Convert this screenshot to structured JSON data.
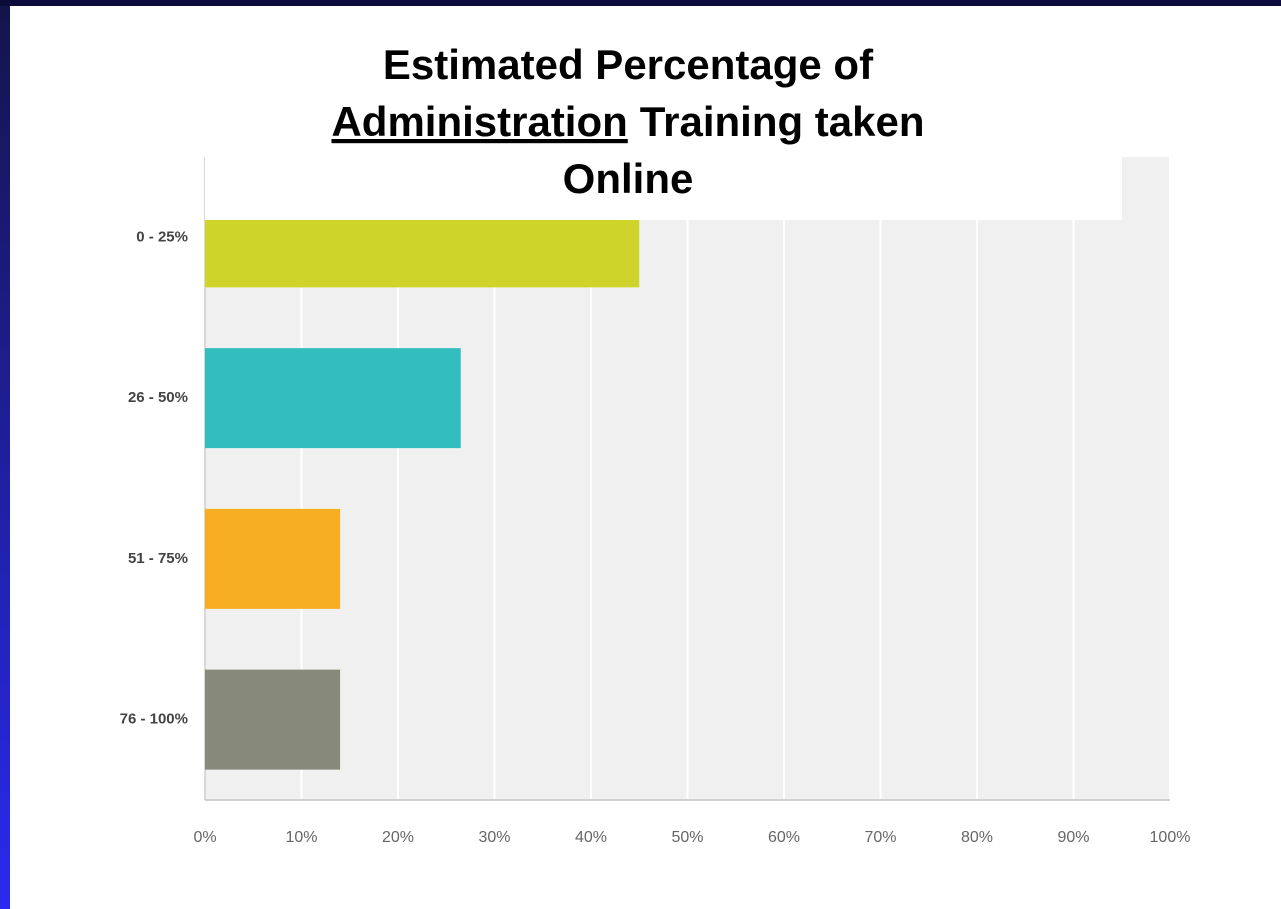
{
  "chart_data": {
    "type": "barh",
    "title": [
      "Estimated Percentage of",
      "Administration",
      "Training taken",
      "Online"
    ],
    "categories": [
      "0 - 25%",
      "26 - 50%",
      "51 - 75%",
      "76 - 100%"
    ],
    "values": [
      45,
      26.5,
      14,
      14
    ],
    "colors": [
      "#cfd42a",
      "#33bdbf",
      "#f7ae21",
      "#878a78"
    ],
    "xlim": [
      0,
      100
    ],
    "xticks": [
      {
        "value": 0,
        "label": "0%"
      },
      {
        "value": 10,
        "label": "10%"
      },
      {
        "value": 20,
        "label": "20%"
      },
      {
        "value": 30,
        "label": "30%"
      },
      {
        "value": 40,
        "label": "40%"
      },
      {
        "value": 50,
        "label": "50%"
      },
      {
        "value": 60,
        "label": "60%"
      },
      {
        "value": 70,
        "label": "70%"
      },
      {
        "value": 80,
        "label": "80%"
      },
      {
        "value": 90,
        "label": "90%"
      },
      {
        "value": 100,
        "label": "100%"
      }
    ],
    "grid": true
  }
}
